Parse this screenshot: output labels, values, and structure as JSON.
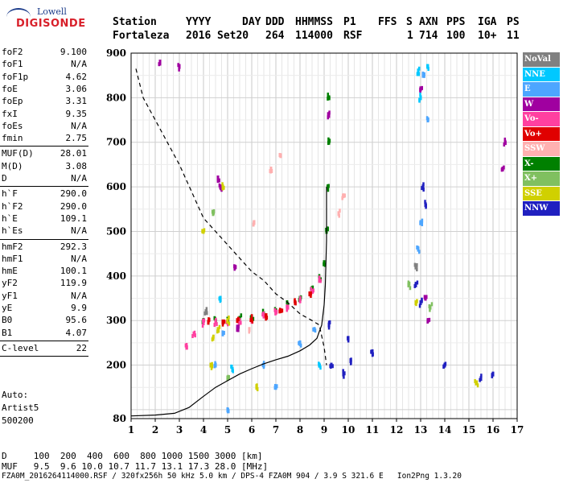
{
  "logo": {
    "brand": "Lowell",
    "name": "DIGISONDE"
  },
  "header": {
    "row1": [
      "Station",
      "YYYY",
      "DAY",
      "DDD",
      "HHMMSS",
      "P1",
      "FFS",
      "S",
      "AXN",
      "PPS",
      "IGA",
      "PS"
    ],
    "row2": [
      "Fortaleza",
      "2016",
      "Set20",
      "264",
      "114000",
      "RSF",
      "1",
      "714",
      "100",
      "10+",
      "11"
    ]
  },
  "params": [
    {
      "label": "foF2",
      "value": "9.100"
    },
    {
      "label": "foF1",
      "value": "N/A"
    },
    {
      "label": "foF1p",
      "value": "4.62"
    },
    {
      "label": "foE",
      "value": "3.06"
    },
    {
      "label": "foEp",
      "value": "3.31"
    },
    {
      "label": "fxI",
      "value": "9.35"
    },
    {
      "label": "foEs",
      "value": "N/A"
    },
    {
      "label": "fmin",
      "value": "2.75"
    },
    {
      "label": "MUF(D)",
      "value": "28.01"
    },
    {
      "label": "M(D)",
      "value": "3.08"
    },
    {
      "label": "D",
      "value": "N/A"
    },
    {
      "label": "h`F",
      "value": "290.0"
    },
    {
      "label": "h`F2",
      "value": "290.0"
    },
    {
      "label": "h`E",
      "value": "109.1"
    },
    {
      "label": "h`Es",
      "value": "N/A"
    },
    {
      "label": "hmF2",
      "value": "292.3"
    },
    {
      "label": "hmF1",
      "value": "N/A"
    },
    {
      "label": "hmE",
      "value": "100.1"
    },
    {
      "label": "yF2",
      "value": "119.9"
    },
    {
      "label": "yF1",
      "value": "N/A"
    },
    {
      "label": "yE",
      "value": "9.9"
    },
    {
      "label": "B0",
      "value": "95.6"
    },
    {
      "label": "B1",
      "value": "4.07"
    },
    {
      "label": "C-level",
      "value": "22"
    }
  ],
  "auto": {
    "line1": "Auto:",
    "line2": "Artist5",
    "line3": "500200"
  },
  "footer": {
    "d_row": "D     100  200  400  600  800 1000 1500 3000 [km]",
    "muf_row": "MUF   9.5  9.6 10.0 10.7 11.7 13.1 17.3 28.0 [MHz]",
    "file_row": "FZA0M_2016264114000.RSF / 320fx256h 50 kHz 5.0 km / DPS-4 FZA0M 904 / 3.9 S 321.6 E   Ion2Png 1.3.20"
  },
  "legend": [
    {
      "label": "NoVal",
      "color": "#808080"
    },
    {
      "label": "NNE",
      "color": "#00c8ff"
    },
    {
      "label": "E",
      "color": "#4da6ff"
    },
    {
      "label": "W",
      "color": "#a000a0"
    },
    {
      "label": "Vo-",
      "color": "#ff40a0"
    },
    {
      "label": "Vo+",
      "color": "#e00000"
    },
    {
      "label": "SSW",
      "color": "#ffb0b0"
    },
    {
      "label": "X-",
      "color": "#008000"
    },
    {
      "label": "X+",
      "color": "#80c060"
    },
    {
      "label": "SSE",
      "color": "#d0d000"
    },
    {
      "label": "NNW",
      "color": "#2020c0"
    }
  ],
  "chart_data": {
    "type": "scatter",
    "xlim": [
      1,
      17
    ],
    "ylim": [
      80,
      900
    ],
    "xticks": [
      1,
      2,
      3,
      4,
      5,
      6,
      7,
      8,
      9,
      10,
      11,
      12,
      13,
      14,
      15,
      16,
      17
    ],
    "yticks": [
      100,
      200,
      300,
      400,
      500,
      600,
      700,
      800,
      900
    ],
    "y_label_ticks": [
      80,
      200,
      300,
      400,
      500,
      600,
      700,
      800,
      900
    ],
    "grid": true,
    "series": [
      {
        "name": "X-",
        "color": "#008000",
        "points": [
          [
            4.0,
            300
          ],
          [
            4.5,
            300
          ],
          [
            5.0,
            303
          ],
          [
            5.5,
            305
          ],
          [
            6.0,
            308
          ],
          [
            6.5,
            315
          ],
          [
            7.0,
            322
          ],
          [
            7.5,
            335
          ],
          [
            8.0,
            350
          ],
          [
            8.5,
            372
          ],
          [
            8.8,
            395
          ],
          [
            9.0,
            430
          ],
          [
            9.1,
            500
          ],
          [
            9.15,
            600
          ],
          [
            9.2,
            700
          ],
          [
            9.2,
            800
          ]
        ]
      },
      {
        "name": "Vo-",
        "color": "#ff40a0",
        "points": [
          [
            3.3,
            240
          ],
          [
            3.6,
            270
          ],
          [
            4.0,
            295
          ],
          [
            4.5,
            297
          ],
          [
            5.0,
            298
          ],
          [
            5.5,
            300
          ],
          [
            6.0,
            303
          ],
          [
            6.5,
            310
          ],
          [
            7.0,
            318
          ],
          [
            7.5,
            330
          ],
          [
            8.0,
            345
          ],
          [
            8.5,
            365
          ],
          [
            8.8,
            390
          ]
        ]
      },
      {
        "name": "Vo+",
        "color": "#e00000",
        "points": [
          [
            4.2,
            296
          ],
          [
            4.8,
            297
          ],
          [
            5.4,
            300
          ],
          [
            6.0,
            303
          ],
          [
            6.6,
            311
          ],
          [
            7.2,
            322
          ],
          [
            7.8,
            340
          ],
          [
            8.4,
            360
          ]
        ]
      },
      {
        "name": "W",
        "color": "#a000a0",
        "points": [
          [
            2.2,
            880
          ],
          [
            3.0,
            870
          ],
          [
            4.6,
            620
          ],
          [
            4.7,
            600
          ],
          [
            5.3,
            420
          ],
          [
            5.4,
            280
          ],
          [
            9.2,
            760
          ],
          [
            13.0,
            820
          ],
          [
            13.2,
            350
          ],
          [
            13.3,
            300
          ],
          [
            16.4,
            640
          ],
          [
            16.5,
            700
          ]
        ]
      },
      {
        "name": "NNW",
        "color": "#2020c0",
        "points": [
          [
            9.2,
            290
          ],
          [
            9.3,
            200
          ],
          [
            9.8,
            180
          ],
          [
            10.0,
            260
          ],
          [
            10.1,
            210
          ],
          [
            11.0,
            230
          ],
          [
            12.8,
            380
          ],
          [
            13.0,
            340
          ],
          [
            13.1,
            600
          ],
          [
            13.2,
            560
          ],
          [
            14.0,
            200
          ],
          [
            15.5,
            170
          ],
          [
            16.0,
            180
          ]
        ]
      },
      {
        "name": "E",
        "color": "#4da6ff",
        "points": [
          [
            4.5,
            200
          ],
          [
            4.8,
            270
          ],
          [
            5.0,
            100
          ],
          [
            6.5,
            200
          ],
          [
            7.0,
            150
          ],
          [
            8.0,
            250
          ],
          [
            8.6,
            280
          ],
          [
            12.9,
            460
          ],
          [
            13.0,
            520
          ],
          [
            13.1,
            850
          ],
          [
            13.3,
            750
          ]
        ]
      },
      {
        "name": "NNE",
        "color": "#00c8ff",
        "points": [
          [
            4.7,
            350
          ],
          [
            5.2,
            190
          ],
          [
            8.8,
            200
          ],
          [
            12.9,
            860
          ],
          [
            13.0,
            800
          ],
          [
            13.3,
            870
          ]
        ]
      },
      {
        "name": "SSE",
        "color": "#d0d000",
        "points": [
          [
            4.0,
            500
          ],
          [
            4.3,
            200
          ],
          [
            4.4,
            260
          ],
          [
            4.6,
            280
          ],
          [
            4.8,
            600
          ],
          [
            5.0,
            300
          ],
          [
            6.2,
            150
          ],
          [
            12.8,
            340
          ],
          [
            15.3,
            160
          ]
        ]
      },
      {
        "name": "SSW",
        "color": "#ffb0b0",
        "points": [
          [
            5.9,
            280
          ],
          [
            6.1,
            520
          ],
          [
            6.8,
            640
          ],
          [
            7.2,
            670
          ],
          [
            9.6,
            540
          ],
          [
            9.8,
            580
          ]
        ]
      },
      {
        "name": "X+",
        "color": "#80c060",
        "points": [
          [
            4.4,
            540
          ],
          [
            5.0,
            170
          ],
          [
            12.5,
            380
          ],
          [
            13.4,
            330
          ]
        ]
      },
      {
        "name": "NoVal",
        "color": "#808080",
        "points": [
          [
            4.1,
            320
          ],
          [
            12.8,
            420
          ]
        ]
      }
    ],
    "profile_dashed": [
      [
        1.2,
        865
      ],
      [
        1.5,
        800
      ],
      [
        2.0,
        750
      ],
      [
        2.5,
        700
      ],
      [
        3.0,
        650
      ],
      [
        3.5,
        590
      ],
      [
        4.0,
        530
      ],
      [
        4.5,
        500
      ],
      [
        5.0,
        470
      ],
      [
        5.5,
        440
      ],
      [
        6.0,
        410
      ],
      [
        6.5,
        390
      ],
      [
        7.0,
        360
      ],
      [
        7.5,
        340
      ],
      [
        8.0,
        315
      ],
      [
        8.5,
        300
      ],
      [
        8.8,
        290
      ],
      [
        9.0,
        240
      ],
      [
        9.1,
        200
      ]
    ],
    "profile_solid": [
      [
        1.0,
        86
      ],
      [
        2.0,
        88
      ],
      [
        2.8,
        92
      ],
      [
        3.4,
        105
      ],
      [
        4.0,
        130
      ],
      [
        4.5,
        150
      ],
      [
        5.0,
        165
      ],
      [
        5.5,
        180
      ],
      [
        6.0,
        192
      ],
      [
        6.5,
        203
      ],
      [
        7.0,
        212
      ],
      [
        7.5,
        220
      ],
      [
        8.0,
        232
      ],
      [
        8.4,
        245
      ],
      [
        8.7,
        260
      ],
      [
        8.9,
        290
      ],
      [
        9.0,
        335
      ],
      [
        9.05,
        380
      ],
      [
        9.1,
        480
      ],
      [
        9.1,
        560
      ],
      [
        9.1,
        600
      ]
    ]
  }
}
